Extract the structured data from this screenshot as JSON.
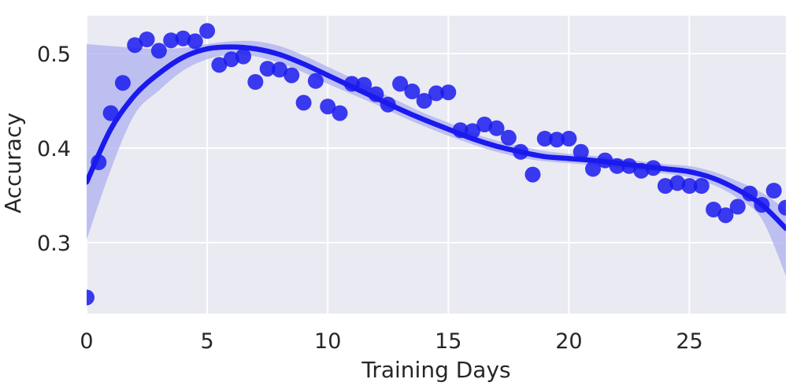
{
  "chart_data": {
    "type": "scatter",
    "xlabel": "Training Days",
    "ylabel": "Accuracy",
    "xlim": [
      0,
      29
    ],
    "ylim": [
      0.225,
      0.54
    ],
    "x_ticks": [
      0,
      5,
      10,
      15,
      20,
      25
    ],
    "y_ticks": [
      0.3,
      0.4,
      0.5
    ],
    "grid": true,
    "colors": {
      "points": "#1a1aee",
      "fit": "#1a1aee",
      "band": "#aeb0f0",
      "background": "#eaeaf2",
      "grid": "#ffffff"
    },
    "series": [
      {
        "kind": "scatter",
        "x": [
          0,
          0.5,
          1,
          1.5,
          2,
          2.5,
          3,
          3.5,
          4,
          4.5,
          5,
          5.5,
          6,
          6.5,
          7,
          7.5,
          8,
          8.5,
          9,
          9.5,
          10,
          10.5,
          11,
          11.5,
          12,
          12.5,
          13,
          13.5,
          14,
          14.5,
          15,
          15.5,
          16,
          16.5,
          17,
          17.5,
          18,
          18.5,
          19,
          19.5,
          20,
          20.5,
          21,
          21.5,
          22,
          22.5,
          23,
          23.5,
          24,
          24.5,
          25,
          25.5,
          26,
          26.5,
          27,
          27.5,
          28,
          28.5,
          29
        ],
        "y": [
          0.242,
          0.385,
          0.437,
          0.469,
          0.509,
          0.515,
          0.503,
          0.514,
          0.516,
          0.513,
          0.524,
          0.488,
          0.494,
          0.497,
          0.47,
          0.484,
          0.483,
          0.477,
          0.448,
          0.471,
          0.444,
          0.437,
          0.468,
          0.467,
          0.457,
          0.446,
          0.468,
          0.46,
          0.45,
          0.458,
          0.459,
          0.419,
          0.418,
          0.425,
          0.421,
          0.411,
          0.396,
          0.372,
          0.41,
          0.409,
          0.41,
          0.396,
          0.378,
          0.387,
          0.381,
          0.381,
          0.376,
          0.379,
          0.36,
          0.363,
          0.36,
          0.36,
          0.335,
          0.329,
          0.338,
          0.352,
          0.34,
          0.355,
          0.337
        ]
      },
      {
        "kind": "fit",
        "x": [
          0,
          1,
          2,
          3,
          4,
          5,
          6,
          7,
          8,
          9,
          10,
          11,
          12,
          13,
          14,
          15,
          16,
          17,
          18,
          19,
          20,
          21,
          22,
          23,
          24,
          25,
          26,
          27,
          28,
          29
        ],
        "y": [
          0.364,
          0.42,
          0.456,
          0.479,
          0.496,
          0.505,
          0.507,
          0.505,
          0.499,
          0.489,
          0.477,
          0.465,
          0.453,
          0.441,
          0.43,
          0.42,
          0.41,
          0.402,
          0.396,
          0.391,
          0.389,
          0.387,
          0.384,
          0.381,
          0.378,
          0.375,
          0.368,
          0.356,
          0.34,
          0.315
        ],
        "lower": [
          0.303,
          0.377,
          0.436,
          0.461,
          0.482,
          0.494,
          0.499,
          0.497,
          0.49,
          0.48,
          0.468,
          0.457,
          0.446,
          0.434,
          0.423,
          0.413,
          0.404,
          0.396,
          0.39,
          0.386,
          0.384,
          0.382,
          0.379,
          0.376,
          0.373,
          0.369,
          0.361,
          0.347,
          0.325,
          0.265
        ],
        "upper": [
          0.51,
          0.508,
          0.506,
          0.505,
          0.506,
          0.51,
          0.513,
          0.513,
          0.508,
          0.498,
          0.486,
          0.474,
          0.461,
          0.449,
          0.437,
          0.427,
          0.416,
          0.408,
          0.402,
          0.397,
          0.394,
          0.392,
          0.389,
          0.386,
          0.383,
          0.381,
          0.375,
          0.365,
          0.353,
          0.335
        ]
      }
    ]
  }
}
